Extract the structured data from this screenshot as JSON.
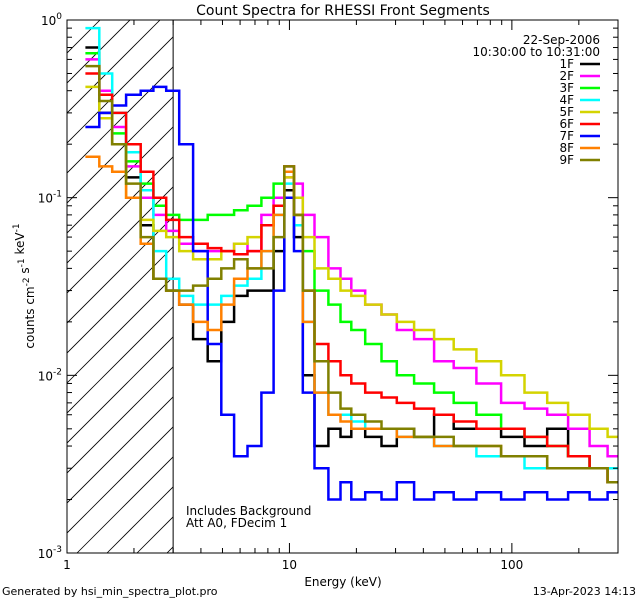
{
  "footer": {
    "generated_by": "Generated by hsi_min_spectra_plot.pro",
    "timestamp": "13-Apr-2023 14:13"
  },
  "chart_data": {
    "type": "line",
    "title": "Count Spectra for RHESSI Front Segments",
    "xlabel": "Energy (keV)",
    "ylabel": "counts cm^-2 s^-1 keV^-1",
    "xscale": "log",
    "yscale": "log",
    "xlim": [
      1,
      300
    ],
    "ylim": [
      0.001,
      1
    ],
    "x_ticks": [
      {
        "value": 1,
        "label": "1"
      },
      {
        "value": 10,
        "label": "10"
      },
      {
        "value": 100,
        "label": "100"
      }
    ],
    "y_ticks": [
      {
        "value": 0.001,
        "label": "10^-3"
      },
      {
        "value": 0.01,
        "label": "10^-2"
      },
      {
        "value": 0.1,
        "label": "10^-1"
      },
      {
        "value": 1,
        "label": "10^0"
      }
    ],
    "legend_header": [
      "22-Sep-2006",
      "10:30:00 to 10:31:00"
    ],
    "annotations": [
      "Includes Background",
      "Att A0, FDecim 1"
    ],
    "threshold_energy": 3,
    "energies": [
      1.3,
      1.5,
      1.7,
      2.0,
      2.3,
      2.6,
      3.0,
      3.4,
      4.0,
      4.6,
      5.3,
      6.0,
      7.0,
      8.0,
      9.0,
      10.0,
      11.0,
      12.0,
      14.0,
      16.0,
      18.0,
      20.0,
      24.0,
      28.0,
      33.0,
      40.0,
      50.0,
      60.0,
      80.0,
      100.0,
      130.0,
      160.0,
      200.0,
      250.0,
      290.0
    ],
    "series": [
      {
        "name": "1F",
        "color": "#000000",
        "values": [
          0.7,
          0.3,
          0.2,
          0.13,
          0.07,
          0.035,
          0.03,
          0.025,
          0.016,
          0.012,
          0.02,
          0.028,
          0.03,
          0.03,
          0.05,
          0.11,
          0.06,
          0.01,
          0.004,
          0.005,
          0.0045,
          0.005,
          0.0045,
          0.004,
          0.005,
          0.0045,
          0.006,
          0.005,
          0.005,
          0.0045,
          0.004,
          0.005,
          0.0035,
          0.003,
          0.0025
        ]
      },
      {
        "name": "2F",
        "color": "#ff00ff",
        "values": [
          0.6,
          0.4,
          0.25,
          0.15,
          0.1,
          0.08,
          0.065,
          0.055,
          0.05,
          0.05,
          0.05,
          0.055,
          0.05,
          0.08,
          0.1,
          0.13,
          0.12,
          0.08,
          0.06,
          0.04,
          0.035,
          0.03,
          0.025,
          0.022,
          0.018,
          0.016,
          0.012,
          0.011,
          0.009,
          0.007,
          0.0065,
          0.006,
          0.005,
          0.004,
          0.0035
        ]
      },
      {
        "name": "3F",
        "color": "#00ff00",
        "values": [
          0.65,
          0.38,
          0.23,
          0.16,
          0.12,
          0.09,
          0.08,
          0.075,
          0.075,
          0.08,
          0.08,
          0.085,
          0.09,
          0.1,
          0.12,
          0.14,
          0.08,
          0.05,
          0.03,
          0.025,
          0.02,
          0.018,
          0.015,
          0.012,
          0.01,
          0.009,
          0.008,
          0.007,
          0.006,
          0.005,
          0.0045,
          0.004,
          0.0035,
          0.003,
          0.003
        ]
      },
      {
        "name": "4F",
        "color": "#00ffff",
        "values": [
          0.9,
          0.5,
          0.3,
          0.18,
          0.11,
          0.05,
          0.035,
          0.028,
          0.025,
          0.025,
          0.028,
          0.032,
          0.035,
          0.05,
          0.08,
          0.12,
          0.07,
          0.02,
          0.008,
          0.006,
          0.006,
          0.0055,
          0.005,
          0.005,
          0.0045,
          0.0045,
          0.004,
          0.004,
          0.0035,
          0.0035,
          0.003,
          0.003,
          0.003,
          0.003,
          0.003
        ]
      },
      {
        "name": "5F",
        "color": "#d4d400",
        "values": [
          0.42,
          0.28,
          0.2,
          0.1,
          0.075,
          0.065,
          0.06,
          0.05,
          0.045,
          0.045,
          0.05,
          0.055,
          0.06,
          0.07,
          0.09,
          0.13,
          0.1,
          0.06,
          0.04,
          0.035,
          0.03,
          0.028,
          0.025,
          0.022,
          0.02,
          0.018,
          0.016,
          0.014,
          0.012,
          0.01,
          0.008,
          0.007,
          0.006,
          0.005,
          0.0045
        ]
      },
      {
        "name": "6F",
        "color": "#ff0000",
        "values": [
          0.5,
          0.38,
          0.3,
          0.2,
          0.14,
          0.1,
          0.075,
          0.06,
          0.055,
          0.052,
          0.05,
          0.048,
          0.05,
          0.07,
          0.09,
          0.15,
          0.08,
          0.03,
          0.015,
          0.012,
          0.01,
          0.009,
          0.008,
          0.0075,
          0.007,
          0.0065,
          0.006,
          0.0055,
          0.005,
          0.005,
          0.0045,
          0.004,
          0.0035,
          0.003,
          0.0025
        ]
      },
      {
        "name": "7F",
        "color": "#0000ff",
        "values": [
          0.25,
          0.3,
          0.33,
          0.38,
          0.4,
          0.42,
          0.4,
          0.2,
          0.05,
          0.015,
          0.006,
          0.0035,
          0.004,
          0.008,
          0.03,
          0.1,
          0.05,
          0.008,
          0.003,
          0.002,
          0.0025,
          0.002,
          0.0022,
          0.002,
          0.0025,
          0.002,
          0.0022,
          0.002,
          0.0022,
          0.002,
          0.0022,
          0.002,
          0.0022,
          0.002,
          0.0022
        ]
      },
      {
        "name": "8F",
        "color": "#ff8000",
        "values": [
          0.17,
          0.15,
          0.14,
          0.1,
          0.055,
          0.035,
          0.03,
          0.025,
          0.02,
          0.018,
          0.025,
          0.035,
          0.04,
          0.05,
          0.08,
          0.14,
          0.08,
          0.02,
          0.008,
          0.006,
          0.0055,
          0.005,
          0.005,
          0.005,
          0.0045,
          0.0045,
          0.004,
          0.004,
          0.004,
          0.0035,
          0.0035,
          0.003,
          0.003,
          0.003,
          0.0025
        ]
      },
      {
        "name": "9F",
        "color": "#808000",
        "values": [
          0.55,
          0.35,
          0.2,
          0.12,
          0.06,
          0.035,
          0.03,
          0.03,
          0.032,
          0.035,
          0.04,
          0.045,
          0.04,
          0.04,
          0.06,
          0.15,
          0.08,
          0.03,
          0.012,
          0.008,
          0.0065,
          0.006,
          0.0055,
          0.005,
          0.005,
          0.0045,
          0.0045,
          0.004,
          0.004,
          0.0035,
          0.0035,
          0.003,
          0.003,
          0.003,
          0.0025
        ]
      }
    ]
  }
}
